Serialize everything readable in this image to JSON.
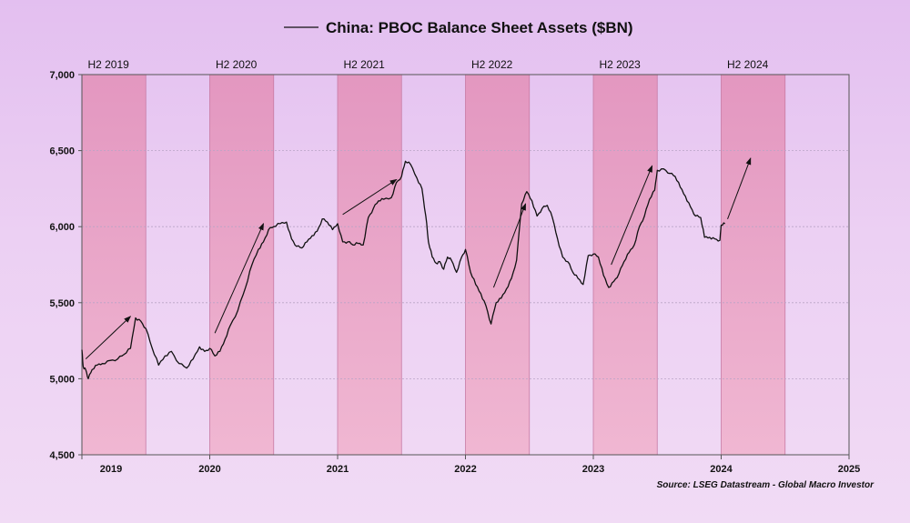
{
  "chart_data": {
    "type": "line",
    "title": "China: PBOC Balance Sheet Assets ($BN)",
    "legend_position": "top-center",
    "xlabel": "",
    "ylabel": "",
    "xlim": [
      2019.0,
      2025.0
    ],
    "ylim": [
      4500,
      7000
    ],
    "y_ticks": [
      4500,
      5000,
      5500,
      6000,
      6500,
      7000
    ],
    "y_tick_labels": [
      "4,500",
      "5,000",
      "5,500",
      "6,000",
      "6,500",
      "7,000"
    ],
    "x_ticks": [
      2019,
      2020,
      2021,
      2022,
      2023,
      2024,
      2025
    ],
    "x_tick_labels": [
      "2019",
      "2020",
      "2021",
      "2022",
      "2023",
      "2024",
      "2025"
    ],
    "grid": "horizontal",
    "shaded_periods": [
      {
        "label": "H2 2019",
        "start": 2019.0,
        "end": 2019.5
      },
      {
        "label": "H2 2020",
        "start": 2020.0,
        "end": 2020.5
      },
      {
        "label": "H2 2021",
        "start": 2021.0,
        "end": 2021.5
      },
      {
        "label": "H2 2022",
        "start": 2022.0,
        "end": 2022.5
      },
      {
        "label": "H2 2023",
        "start": 2023.0,
        "end": 2023.5
      },
      {
        "label": "H2 2024",
        "start": 2024.0,
        "end": 2024.5
      }
    ],
    "series": [
      {
        "name": "China: PBOC Balance Sheet Assets ($BN)",
        "color": "#111111",
        "points": [
          [
            2019.0,
            5190
          ],
          [
            2019.01,
            5080
          ],
          [
            2019.03,
            5060
          ],
          [
            2019.05,
            5000
          ],
          [
            2019.08,
            5060
          ],
          [
            2019.12,
            5090
          ],
          [
            2019.16,
            5100
          ],
          [
            2019.22,
            5120
          ],
          [
            2019.28,
            5130
          ],
          [
            2019.33,
            5160
          ],
          [
            2019.38,
            5200
          ],
          [
            2019.42,
            5400
          ],
          [
            2019.46,
            5380
          ],
          [
            2019.5,
            5330
          ],
          [
            2019.55,
            5200
          ],
          [
            2019.6,
            5090
          ],
          [
            2019.65,
            5150
          ],
          [
            2019.7,
            5180
          ],
          [
            2019.76,
            5100
          ],
          [
            2019.82,
            5070
          ],
          [
            2019.87,
            5130
          ],
          [
            2019.92,
            5210
          ],
          [
            2019.96,
            5180
          ],
          [
            2020.0,
            5200
          ],
          [
            2020.04,
            5150
          ],
          [
            2020.08,
            5180
          ],
          [
            2020.12,
            5260
          ],
          [
            2020.16,
            5350
          ],
          [
            2020.22,
            5450
          ],
          [
            2020.28,
            5600
          ],
          [
            2020.33,
            5750
          ],
          [
            2020.38,
            5850
          ],
          [
            2020.42,
            5900
          ],
          [
            2020.46,
            5980
          ],
          [
            2020.5,
            6000
          ],
          [
            2020.55,
            6020
          ],
          [
            2020.6,
            6030
          ],
          [
            2020.64,
            5920
          ],
          [
            2020.68,
            5870
          ],
          [
            2020.72,
            5860
          ],
          [
            2020.76,
            5900
          ],
          [
            2020.8,
            5940
          ],
          [
            2020.84,
            5970
          ],
          [
            2020.88,
            6050
          ],
          [
            2020.92,
            6030
          ],
          [
            2020.96,
            5980
          ],
          [
            2021.0,
            6020
          ],
          [
            2021.04,
            5900
          ],
          [
            2021.08,
            5900
          ],
          [
            2021.12,
            5880
          ],
          [
            2021.16,
            5890
          ],
          [
            2021.2,
            5880
          ],
          [
            2021.24,
            6060
          ],
          [
            2021.28,
            6120
          ],
          [
            2021.32,
            6170
          ],
          [
            2021.36,
            6180
          ],
          [
            2021.42,
            6190
          ],
          [
            2021.46,
            6290
          ],
          [
            2021.5,
            6330
          ],
          [
            2021.53,
            6430
          ],
          [
            2021.57,
            6410
          ],
          [
            2021.62,
            6320
          ],
          [
            2021.66,
            6250
          ],
          [
            2021.69,
            6070
          ],
          [
            2021.71,
            5900
          ],
          [
            2021.74,
            5800
          ],
          [
            2021.77,
            5760
          ],
          [
            2021.8,
            5770
          ],
          [
            2021.83,
            5720
          ],
          [
            2021.86,
            5800
          ],
          [
            2021.89,
            5780
          ],
          [
            2021.93,
            5700
          ],
          [
            2021.97,
            5800
          ],
          [
            2022.0,
            5850
          ],
          [
            2022.04,
            5700
          ],
          [
            2022.08,
            5620
          ],
          [
            2022.12,
            5560
          ],
          [
            2022.16,
            5480
          ],
          [
            2022.2,
            5360
          ],
          [
            2022.24,
            5500
          ],
          [
            2022.28,
            5530
          ],
          [
            2022.32,
            5590
          ],
          [
            2022.36,
            5660
          ],
          [
            2022.4,
            5780
          ],
          [
            2022.44,
            6150
          ],
          [
            2022.48,
            6230
          ],
          [
            2022.52,
            6170
          ],
          [
            2022.56,
            6070
          ],
          [
            2022.6,
            6120
          ],
          [
            2022.64,
            6140
          ],
          [
            2022.68,
            6060
          ],
          [
            2022.72,
            5920
          ],
          [
            2022.76,
            5800
          ],
          [
            2022.8,
            5770
          ],
          [
            2022.84,
            5700
          ],
          [
            2022.88,
            5660
          ],
          [
            2022.92,
            5620
          ],
          [
            2022.96,
            5810
          ],
          [
            2023.0,
            5820
          ],
          [
            2023.04,
            5800
          ],
          [
            2023.08,
            5680
          ],
          [
            2023.12,
            5600
          ],
          [
            2023.16,
            5640
          ],
          [
            2023.2,
            5690
          ],
          [
            2023.24,
            5770
          ],
          [
            2023.28,
            5830
          ],
          [
            2023.32,
            5880
          ],
          [
            2023.36,
            6000
          ],
          [
            2023.4,
            6070
          ],
          [
            2023.44,
            6180
          ],
          [
            2023.48,
            6240
          ],
          [
            2023.5,
            6370
          ],
          [
            2023.55,
            6380
          ],
          [
            2023.6,
            6350
          ],
          [
            2023.64,
            6330
          ],
          [
            2023.68,
            6260
          ],
          [
            2023.72,
            6200
          ],
          [
            2023.76,
            6130
          ],
          [
            2023.8,
            6070
          ],
          [
            2023.84,
            6060
          ],
          [
            2023.87,
            5930
          ],
          [
            2023.91,
            5930
          ],
          [
            2023.95,
            5920
          ],
          [
            2023.99,
            5910
          ],
          [
            2024.0,
            6010
          ],
          [
            2024.03,
            6020
          ]
        ]
      }
    ],
    "annotations": [
      {
        "type": "arrow",
        "from": [
          2019.03,
          5130
        ],
        "to": [
          2019.38,
          5410
        ]
      },
      {
        "type": "arrow",
        "from": [
          2020.04,
          5300
        ],
        "to": [
          2020.42,
          6020
        ]
      },
      {
        "type": "arrow",
        "from": [
          2021.04,
          6080
        ],
        "to": [
          2021.46,
          6310
        ]
      },
      {
        "type": "arrow",
        "from": [
          2022.22,
          5600
        ],
        "to": [
          2022.47,
          6150
        ]
      },
      {
        "type": "arrow",
        "from": [
          2023.14,
          5750
        ],
        "to": [
          2023.46,
          6400
        ]
      },
      {
        "type": "arrow",
        "from": [
          2024.05,
          6050
        ],
        "to": [
          2024.23,
          6450
        ]
      }
    ],
    "source": "Source: LSEG Datastream - Global Macro Investor"
  }
}
